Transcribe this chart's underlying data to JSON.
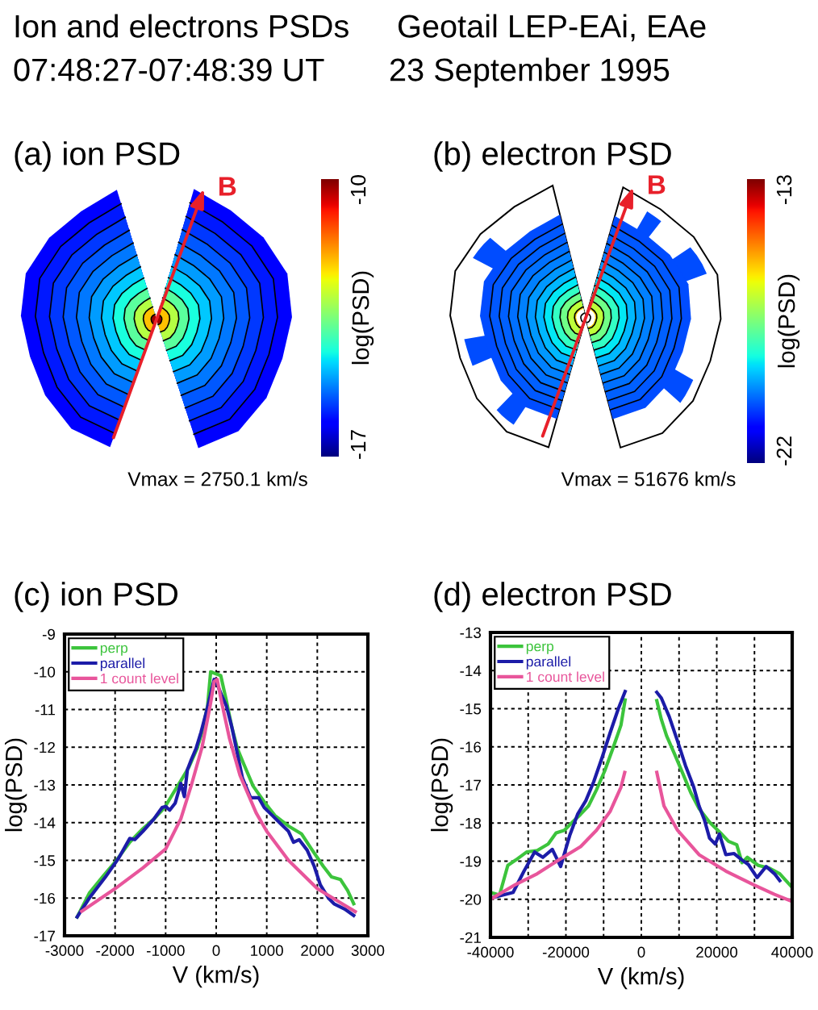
{
  "chart_data": [
    {
      "type": "other",
      "annotations": [
        "Ion and electrons PSDs",
        "Geotail LEP-EAi, EAe",
        "07:48:27-07:48:39 UT",
        "23 September 1995"
      ]
    },
    {
      "type": "other",
      "title": "(a) ion PSD",
      "clabel": "log(PSD)",
      "annotations": [
        "B",
        "-10",
        "-17",
        "Vmax = 2750.1 km/s"
      ]
    },
    {
      "type": "other",
      "title": "(b) electron PSD",
      "clabel": "log(PSD)",
      "annotations": [
        "B",
        "-13",
        "-22",
        "Vmax = 51676 km/s"
      ]
    },
    {
      "type": "line",
      "title": "(c) ion PSD",
      "xlabel": "V (km/s)",
      "ylabel": "log(PSD)",
      "xlim": [
        -3000,
        3000
      ],
      "xticks": [
        -3000,
        -2000,
        -1000,
        0,
        1000,
        2000,
        3000
      ],
      "ylim": [
        -17,
        -9
      ],
      "yticks": [
        -17,
        -16,
        -15,
        -14,
        -13,
        -12,
        -11,
        -10,
        -9
      ],
      "grid": true,
      "legend": "top left",
      "series": [
        {
          "name": "perp",
          "color": "#3cc43c",
          "x": [
            -2750,
            -2510,
            -2250,
            -1980,
            -1710,
            -1450,
            -1230,
            -1020,
            -860,
            -700,
            -540,
            -380,
            -280,
            -170,
            -110,
            90,
            200,
            310,
            420,
            550,
            730,
            950,
            1160,
            1430,
            1690,
            1900,
            2120,
            2280,
            2460,
            2600,
            2720
          ],
          "values": [
            -16.5,
            -15.87,
            -15.44,
            -15.01,
            -14.52,
            -14.16,
            -13.9,
            -13.6,
            -13.24,
            -12.89,
            -12.53,
            -12.04,
            -11.6,
            -10.9,
            -10.0,
            -10.1,
            -10.76,
            -11.47,
            -12.04,
            -12.46,
            -13.03,
            -13.45,
            -13.81,
            -14.09,
            -14.3,
            -14.73,
            -15.16,
            -15.44,
            -15.51,
            -15.8,
            -16.15
          ]
        },
        {
          "name": "parallel",
          "color": "#1c1ca8",
          "x": [
            -2750,
            -2510,
            -2190,
            -1930,
            -1710,
            -1610,
            -1450,
            -1230,
            -1070,
            -1000,
            -920,
            -810,
            -700,
            -630,
            -570,
            -490,
            -400,
            -300,
            -190,
            -90,
            -40,
            20,
            100,
            200,
            310,
            420,
            520,
            680,
            840,
            950,
            1110,
            1270,
            1430,
            1530,
            1640,
            1800,
            1940,
            2060,
            2220,
            2330,
            2540,
            2720
          ],
          "values": [
            -16.5,
            -16.0,
            -15.44,
            -14.94,
            -14.42,
            -14.45,
            -14.23,
            -13.9,
            -13.6,
            -13.57,
            -13.67,
            -13.48,
            -12.96,
            -13.31,
            -12.6,
            -12.32,
            -12.04,
            -11.6,
            -11.04,
            -10.48,
            -10.2,
            -10.33,
            -10.6,
            -10.9,
            -11.47,
            -12.18,
            -12.82,
            -13.34,
            -13.34,
            -13.6,
            -13.81,
            -14.02,
            -14.23,
            -14.52,
            -14.45,
            -14.73,
            -15.16,
            -15.65,
            -16.0,
            -16.15,
            -16.29,
            -16.46
          ]
        },
        {
          "name": "1 count level",
          "color": "#e8559b",
          "x": [
            -2660,
            -2000,
            -1450,
            -1000,
            -700,
            -490,
            -280,
            -120,
            -40,
            20,
            100,
            260,
            470,
            790,
            1000,
            1430,
            2000,
            2490,
            2750
          ],
          "values": [
            -16.35,
            -15.75,
            -15.2,
            -14.7,
            -13.9,
            -13.0,
            -12.0,
            -10.9,
            -10.26,
            -10.2,
            -10.76,
            -11.75,
            -12.74,
            -13.74,
            -14.23,
            -15.0,
            -15.75,
            -16.15,
            -16.36
          ]
        }
      ]
    },
    {
      "type": "line",
      "title": "(d) electron PSD",
      "xlabel": "V (km/s)",
      "ylabel": "log(PSD)",
      "xlim": [
        -40000,
        40000
      ],
      "xticks": [
        -40000,
        {
          "value": -30000,
          "label": null
        },
        -20000,
        {
          "value": -10000,
          "label": null
        },
        0,
        {
          "value": 10000,
          "label": null
        },
        20000,
        {
          "value": 30000,
          "label": null
        },
        40000
      ],
      "ylim": [
        -21,
        -13
      ],
      "yticks": [
        -21,
        -20,
        -19,
        -18,
        -17,
        -16,
        -15,
        -14,
        -13
      ],
      "grid": true,
      "legend": "top left",
      "series": [
        {
          "name": "perp",
          "color": "#3cc43c",
          "x": [
            -40000,
            -37600,
            -35400,
            -33300,
            -30400,
            -27600,
            -24700,
            -22600,
            -20400,
            -18300,
            -16100,
            -14000,
            -11900,
            -9700,
            -7600,
            -5400,
            -4300,
            0,
            4100,
            5300,
            6700,
            8900,
            11000,
            13100,
            15300,
            18100,
            21000,
            23100,
            25300,
            26700,
            28100,
            31000,
            33900,
            36700,
            40000
          ],
          "values": [
            -19.82,
            -19.89,
            -19.11,
            -18.97,
            -18.76,
            -18.72,
            -18.55,
            -18.26,
            -18.19,
            -17.98,
            -17.77,
            -17.55,
            -17.13,
            -16.63,
            -16.06,
            -15.43,
            -14.77,
            null,
            -14.79,
            -15.28,
            -15.71,
            -16.21,
            -16.7,
            -17.2,
            -17.62,
            -17.98,
            -18.26,
            -18.48,
            -18.57,
            -19.04,
            -18.9,
            -19.11,
            -19.18,
            -19.33,
            -19.69
          ]
        },
        {
          "name": "parallel",
          "color": "#1c1ca8",
          "x": [
            -40000,
            -34000,
            -31100,
            -28300,
            -26100,
            -23600,
            -21400,
            -19000,
            -16900,
            -14700,
            -12600,
            -10400,
            -8300,
            -6100,
            -4300,
            0,
            4100,
            5300,
            7400,
            9600,
            11700,
            13900,
            15300,
            16700,
            18100,
            19600,
            20700,
            22400,
            24600,
            26700,
            28400,
            30700,
            33100,
            35300,
            36700
          ],
          "values": [
            -19.97,
            -19.82,
            -19.26,
            -18.76,
            -18.9,
            -18.69,
            -19.14,
            -18.33,
            -17.77,
            -17.41,
            -16.91,
            -16.28,
            -15.64,
            -15.0,
            -14.55,
            null,
            -14.57,
            -14.72,
            -15.21,
            -15.85,
            -16.49,
            -17.06,
            -17.55,
            -17.91,
            -18.4,
            -18.55,
            -18.29,
            -18.83,
            -18.8,
            -18.97,
            -19.09,
            -19.43,
            -19.14,
            -19.33,
            -19.51
          ]
        },
        {
          "name": "1 count level",
          "color": "#e8559b",
          "x": [
            -40000,
            -33300,
            -27600,
            -21900,
            -16100,
            -11900,
            -8300,
            -5400,
            -4400,
            0,
            4100,
            6000,
            9600,
            15300,
            22400,
            29600,
            35300,
            40000
          ],
          "values": [
            -20.0,
            -19.61,
            -19.33,
            -18.97,
            -18.62,
            -18.19,
            -17.7,
            -17.06,
            -16.67,
            null,
            -16.67,
            -17.55,
            -18.19,
            -18.83,
            -19.26,
            -19.61,
            -19.87,
            -20.06
          ]
        }
      ]
    }
  ]
}
